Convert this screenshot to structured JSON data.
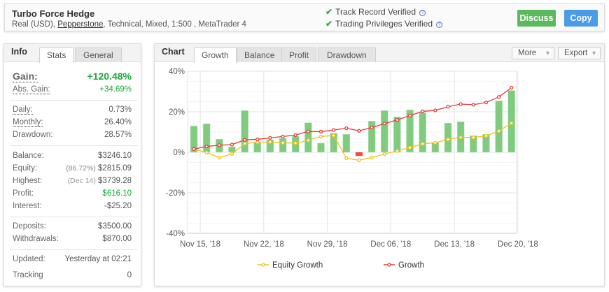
{
  "header": {
    "title": "Turbo Force Hedge",
    "sub_prefix": "Real (USD), ",
    "broker": "Pepperstone",
    "sub_suffix": ", Technical, Mixed, 1:500 , MetaTrader 4",
    "verified": [
      "Track Record Verified",
      "Trading Privileges Verified"
    ],
    "discuss": "Discuss",
    "copy": "Copy"
  },
  "info": {
    "label": "Info",
    "tabs": [
      "Stats",
      "General"
    ],
    "gain": {
      "k": "Gain:",
      "v": "+120.48%"
    },
    "abs_gain": {
      "k": "Abs. Gain:",
      "v": "+34.69%"
    },
    "daily": {
      "k": "Daily:",
      "v": "0.73%"
    },
    "monthly": {
      "k": "Monthly:",
      "v": "26.40%"
    },
    "drawdown": {
      "k": "Drawdown:",
      "v": "28.57%"
    },
    "balance": {
      "k": "Balance:",
      "v": "$3246.10"
    },
    "equity": {
      "k": "Equity:",
      "note": "(86.72%)",
      "v": "$2815.09"
    },
    "highest": {
      "k": "Highest:",
      "note": "(Dec 14)",
      "v": "$3739.28"
    },
    "profit": {
      "k": "Profit:",
      "v": "$616.10"
    },
    "interest": {
      "k": "Interest:",
      "v": "-$25.20"
    },
    "deposits": {
      "k": "Deposits:",
      "v": "$3500.00"
    },
    "withdrawals": {
      "k": "Withdrawals:",
      "v": "$870.00"
    },
    "updated": {
      "k": "Updated:",
      "v": "Yesterday at 02:21"
    },
    "tracking": {
      "k": "Tracking",
      "v": "0"
    }
  },
  "chart": {
    "label": "Chart",
    "tabs": [
      "Growth",
      "Balance",
      "Profit",
      "Drawdown"
    ],
    "more": "More",
    "export": "Export"
  },
  "chart_data": {
    "type": "bar+line",
    "x": [
      "Nov 14",
      "Nov 15",
      "Nov 16",
      "Nov 19",
      "Nov 20",
      "Nov 21",
      "Nov 22",
      "Nov 23",
      "Nov 26",
      "Nov 27",
      "Nov 28",
      "Nov 29",
      "Nov 30",
      "Dec 03",
      "Dec 04",
      "Dec 05",
      "Dec 06",
      "Dec 07",
      "Dec 10",
      "Dec 11",
      "Dec 12",
      "Dec 13",
      "Dec 14",
      "Dec 17",
      "Dec 18",
      "Dec 19"
    ],
    "x_ticks": [
      "Nov 15, '18",
      "Nov 22, '18",
      "Nov 29, '18",
      "Dec 06, '18",
      "Dec 13, '18",
      "Dec 20, '18"
    ],
    "x_tick_dates": [
      "Nov 15",
      "Nov 22",
      "Nov 29",
      "Dec 06",
      "Dec 13",
      "Dec 20"
    ],
    "y_ticks": [
      "40%",
      "20%",
      "0%",
      "-20%",
      "-40%"
    ],
    "ylim": [
      -40,
      40
    ],
    "grid": true,
    "legend": "bottom",
    "bars": [
      13.0,
      14.1,
      6.5,
      2.7,
      20.6,
      5.0,
      6.2,
      6.9,
      7.9,
      14.6,
      4.5,
      9.4,
      8.9,
      -1.8,
      15.4,
      20.6,
      17.5,
      20.9,
      19.5,
      4.8,
      14.4,
      15.1,
      8.2,
      8.9,
      25.4,
      30.5
    ],
    "series": [
      {
        "name": "Equity Growth",
        "color": "#f5c21b",
        "values": [
          1.6,
          -0.1,
          -2.6,
          -0.8,
          4.3,
          4.9,
          5.1,
          4.7,
          4.5,
          5.9,
          7.8,
          8.3,
          -2.9,
          -3.9,
          -2.6,
          -0.9,
          0.7,
          2.3,
          4.2,
          4.7,
          6.4,
          7.4,
          7.3,
          8.1,
          10.5,
          14.4
        ]
      },
      {
        "name": "Growth",
        "color": "#e8383d",
        "values": [
          1.6,
          2.9,
          3.5,
          3.8,
          6.1,
          6.4,
          7.1,
          7.8,
          8.5,
          10.3,
          10.2,
          11.0,
          11.9,
          10.6,
          12.2,
          14.2,
          16.0,
          18.1,
          20.2,
          20.7,
          22.5,
          23.8,
          23.5,
          24.6,
          27.3,
          31.9
        ]
      }
    ],
    "bar_colors": {
      "positive": "#7fcc7f",
      "negative": "#f04848"
    }
  }
}
